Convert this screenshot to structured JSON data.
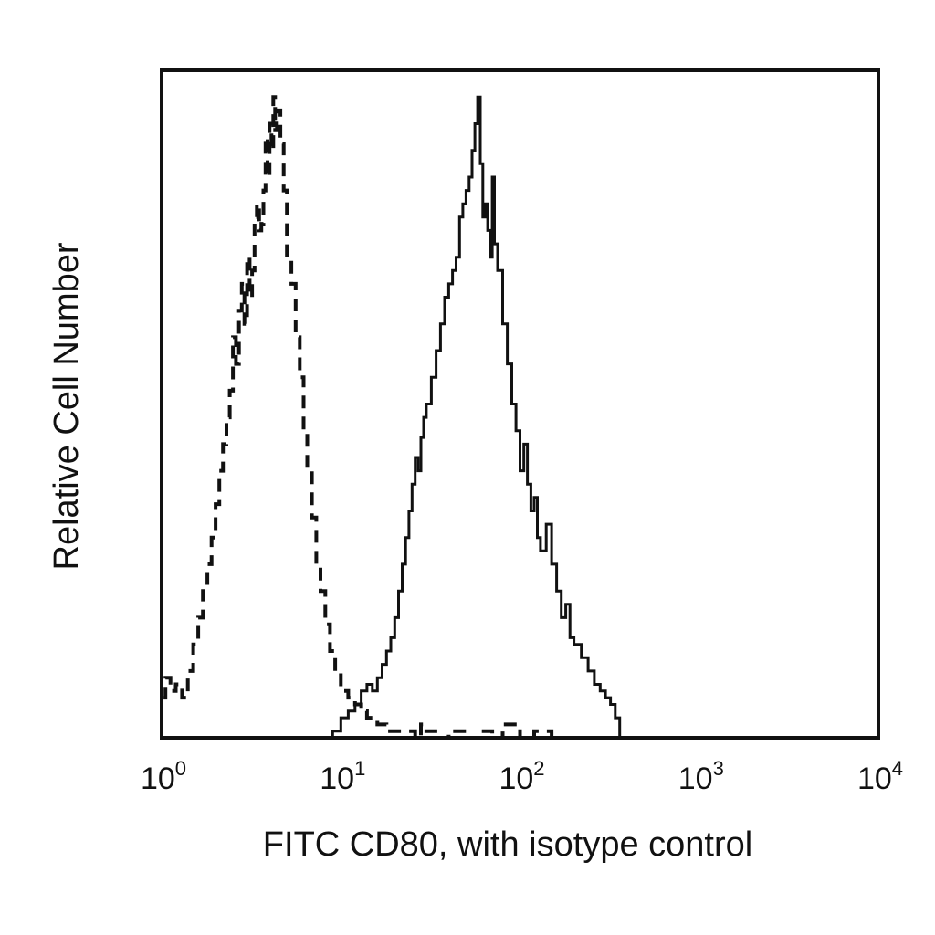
{
  "chart_data": {
    "type": "line",
    "title": "",
    "xlabel": "FITC CD80, with isotype control",
    "ylabel": "Relative Cell Number",
    "x_scale": "log",
    "xlim": [
      1,
      10000
    ],
    "ylim": [
      0,
      100
    ],
    "grid": false,
    "x_ticks": [
      {
        "base": "10",
        "exp": "0",
        "value": 1
      },
      {
        "base": "10",
        "exp": "1",
        "value": 10
      },
      {
        "base": "10",
        "exp": "2",
        "value": 100
      },
      {
        "base": "10",
        "exp": "3",
        "value": 1000
      },
      {
        "base": "10",
        "exp": "4",
        "value": 10000
      }
    ],
    "series": [
      {
        "style": "dashed",
        "color": "#111111",
        "x": [
          1.0,
          1.05,
          1.12,
          1.2,
          1.3,
          1.4,
          1.5,
          1.6,
          1.7,
          1.8,
          1.9,
          2.0,
          2.1,
          2.2,
          2.3,
          2.4,
          2.5,
          2.6,
          2.7,
          2.8,
          2.9,
          3.0,
          3.1,
          3.2,
          3.3,
          3.4,
          3.5,
          3.6,
          3.7,
          3.8,
          3.9,
          4.0,
          4.1,
          4.2,
          4.3,
          4.4,
          4.6,
          4.8,
          5.0,
          5.3,
          5.6,
          5.9,
          6.2,
          6.5,
          6.9,
          7.3,
          7.7,
          8.2,
          8.7,
          9.3,
          10,
          11,
          12,
          13,
          14,
          15,
          16,
          17,
          18,
          20,
          22,
          24,
          26,
          28,
          30,
          35,
          40,
          50,
          60,
          70,
          80,
          100,
          120,
          150
        ],
        "y": [
          6,
          9,
          7,
          8,
          6,
          10,
          14,
          18,
          22,
          26,
          30,
          35,
          40,
          44,
          48,
          52,
          60,
          56,
          64,
          68,
          62,
          72,
          66,
          70,
          78,
          80,
          76,
          77,
          82,
          90,
          84,
          92,
          88,
          96,
          91,
          94,
          89,
          82,
          72,
          68,
          60,
          54,
          46,
          40,
          33,
          26,
          22,
          17,
          13,
          10,
          7,
          6,
          5,
          4,
          3,
          3,
          2,
          2,
          1,
          1,
          1,
          1,
          0,
          2,
          1,
          0,
          1,
          0,
          1,
          0,
          2,
          0,
          1,
          0
        ]
      },
      {
        "style": "solid",
        "color": "#111111",
        "x": [
          9,
          10,
          11,
          12,
          13,
          14,
          15,
          16,
          17,
          18,
          19,
          20,
          21,
          22,
          23,
          24,
          25,
          26,
          27,
          28,
          29,
          30,
          32,
          34,
          36,
          38,
          40,
          42,
          44,
          46,
          48,
          50,
          52,
          54,
          56,
          58,
          60,
          62,
          64,
          66,
          68,
          70,
          72,
          75,
          80,
          85,
          90,
          95,
          100,
          105,
          110,
          115,
          120,
          125,
          130,
          140,
          150,
          160,
          170,
          180,
          190,
          200,
          220,
          240,
          260,
          280,
          300,
          320,
          340,
          360
        ],
        "y": [
          1,
          3,
          4,
          5,
          7,
          8,
          7,
          9,
          11,
          13,
          15,
          18,
          22,
          26,
          30,
          34,
          38,
          42,
          40,
          45,
          48,
          50,
          54,
          58,
          62,
          66,
          68,
          70,
          72,
          78,
          80,
          82,
          84,
          88,
          92,
          96,
          86,
          78,
          80,
          76,
          72,
          84,
          74,
          70,
          62,
          56,
          50,
          46,
          40,
          44,
          38,
          34,
          36,
          30,
          28,
          32,
          26,
          22,
          18,
          20,
          15,
          14,
          12,
          10,
          8,
          7,
          6,
          5,
          3,
          0
        ]
      }
    ]
  }
}
